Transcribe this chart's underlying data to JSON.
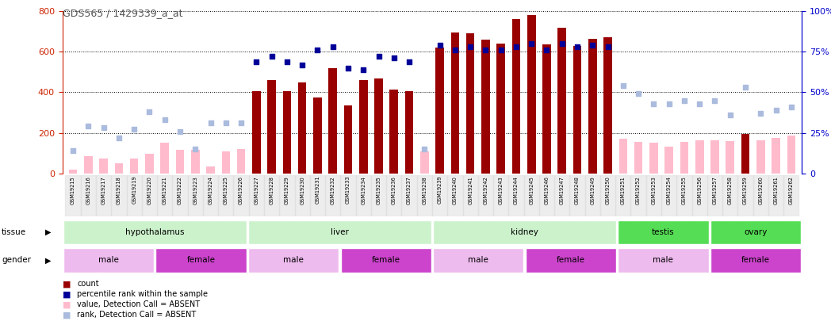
{
  "title": "GDS565 / 1429339_a_at",
  "samples": [
    "GSM19215",
    "GSM19216",
    "GSM19217",
    "GSM19218",
    "GSM19219",
    "GSM19220",
    "GSM19221",
    "GSM19222",
    "GSM19223",
    "GSM19224",
    "GSM19225",
    "GSM19226",
    "GSM19227",
    "GSM19228",
    "GSM19229",
    "GSM19230",
    "GSM19231",
    "GSM19232",
    "GSM19233",
    "GSM19234",
    "GSM19235",
    "GSM19236",
    "GSM19237",
    "GSM19238",
    "GSM19239",
    "GSM19240",
    "GSM19241",
    "GSM19242",
    "GSM19243",
    "GSM19244",
    "GSM19245",
    "GSM19246",
    "GSM19247",
    "GSM19248",
    "GSM19249",
    "GSM19250",
    "GSM19251",
    "GSM19252",
    "GSM19253",
    "GSM19254",
    "GSM19255",
    "GSM19256",
    "GSM19257",
    "GSM19258",
    "GSM19259",
    "GSM19260",
    "GSM19261",
    "GSM19262"
  ],
  "count_present": [
    null,
    null,
    null,
    null,
    null,
    null,
    null,
    null,
    null,
    null,
    null,
    null,
    405,
    460,
    405,
    450,
    375,
    520,
    335,
    460,
    470,
    415,
    405,
    null,
    620,
    695,
    690,
    660,
    640,
    760,
    780,
    635,
    720,
    630,
    665,
    670,
    null,
    null,
    null,
    null,
    null,
    null,
    null,
    null,
    195,
    null,
    null,
    null
  ],
  "count_absent": [
    20,
    85,
    75,
    50,
    75,
    95,
    150,
    115,
    115,
    35,
    110,
    120,
    null,
    null,
    null,
    null,
    null,
    null,
    null,
    null,
    null,
    null,
    null,
    110,
    null,
    null,
    null,
    null,
    null,
    null,
    null,
    null,
    null,
    null,
    null,
    null,
    170,
    155,
    150,
    130,
    155,
    165,
    165,
    160,
    null,
    165,
    175,
    185
  ],
  "rank_present_pct": [
    null,
    null,
    null,
    null,
    null,
    null,
    null,
    null,
    null,
    null,
    null,
    null,
    69,
    72,
    69,
    67,
    76,
    78,
    65,
    64,
    72,
    71,
    69,
    null,
    79,
    76,
    78,
    76,
    76,
    78,
    80,
    76,
    80,
    78,
    79,
    78,
    null,
    null,
    null,
    null,
    null,
    null,
    null,
    null,
    null,
    null,
    null,
    null
  ],
  "rank_absent_pct": [
    14,
    29,
    28,
    22,
    27,
    38,
    33,
    26,
    15,
    31,
    31,
    31,
    null,
    null,
    null,
    null,
    null,
    null,
    null,
    null,
    null,
    null,
    null,
    15,
    null,
    null,
    null,
    null,
    null,
    null,
    null,
    null,
    null,
    null,
    null,
    null,
    54,
    49,
    43,
    43,
    45,
    43,
    45,
    36,
    53,
    37,
    39,
    41
  ],
  "tissue_groups": [
    {
      "label": "hypothalamus",
      "start": 0,
      "end": 12,
      "color": "#ccf2cc"
    },
    {
      "label": "liver",
      "start": 12,
      "end": 24,
      "color": "#ccf2cc"
    },
    {
      "label": "kidney",
      "start": 24,
      "end": 36,
      "color": "#ccf2cc"
    },
    {
      "label": "testis",
      "start": 36,
      "end": 42,
      "color": "#55dd55"
    },
    {
      "label": "ovary",
      "start": 42,
      "end": 48,
      "color": "#55dd55"
    }
  ],
  "gender_groups": [
    {
      "label": "male",
      "start": 0,
      "end": 6,
      "color": "#eebbee"
    },
    {
      "label": "female",
      "start": 6,
      "end": 12,
      "color": "#cc44cc"
    },
    {
      "label": "male",
      "start": 12,
      "end": 18,
      "color": "#eebbee"
    },
    {
      "label": "female",
      "start": 18,
      "end": 24,
      "color": "#cc44cc"
    },
    {
      "label": "male",
      "start": 24,
      "end": 30,
      "color": "#eebbee"
    },
    {
      "label": "female",
      "start": 30,
      "end": 36,
      "color": "#cc44cc"
    },
    {
      "label": "male",
      "start": 36,
      "end": 42,
      "color": "#eebbee"
    },
    {
      "label": "female",
      "start": 42,
      "end": 48,
      "color": "#cc44cc"
    }
  ],
  "ylim_left": [
    0,
    800
  ],
  "ylim_right": [
    0,
    100
  ],
  "yticks_left": [
    0,
    200,
    400,
    600,
    800
  ],
  "yticks_right": [
    0,
    25,
    50,
    75,
    100
  ],
  "bar_width": 0.55,
  "color_present_bar": "#990000",
  "color_absent_bar": "#ffbbcc",
  "color_present_rank": "#000099",
  "color_absent_rank": "#aabbdd",
  "bg_color": "#ffffff",
  "chart_bg": "#ffffff",
  "title_color": "#555555",
  "left_axis_color": "#cc2200",
  "right_axis_color": "#0000cc"
}
